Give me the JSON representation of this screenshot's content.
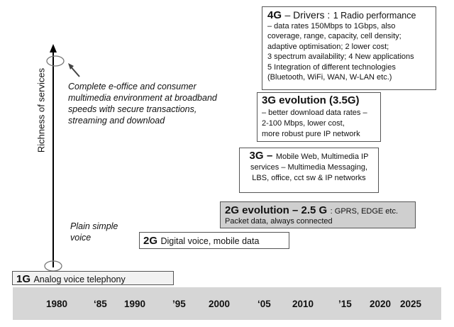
{
  "axis": {
    "label": "Richness of services"
  },
  "notes": {
    "top": [
      "Complete e-office and consumer",
      "multimedia environment at broadband",
      "speeds with secure transactions,",
      "streaming and download"
    ],
    "bottom": [
      "Plain simple",
      "voice"
    ]
  },
  "generations": {
    "g1": {
      "title": "1G",
      "text": "Analog voice telephony"
    },
    "g2": {
      "title": "2G",
      "text": "Digital voice, mobile data"
    },
    "g25": {
      "title": "2G evolution – 2.5 G",
      "text1": ": GPRS, EDGE etc.",
      "text2": "Packet data, always connected"
    },
    "g3": {
      "title": "3G",
      "dash": "–",
      "lines": [
        "Mobile Web, Multimedia IP",
        "services – Multimedia Messaging,",
        "LBS, office, cct sw & IP networks"
      ]
    },
    "g35": {
      "title": "3G evolution (3.5G)",
      "lines": [
        "– better download data rates –",
        "2-100 Mbps, lower cost,",
        "more robust pure IP network"
      ]
    },
    "g4": {
      "title": "4G",
      "head": "– Drivers :",
      "head2": "1 Radio performance",
      "lines": [
        "– data rates 150Mbps to 1Gbps, also",
        "coverage, range, capacity, cell density;",
        "adaptive optimisation; 2 lower cost;",
        "3 spectrum availability; 4 New applications",
        "5 Integration of different technologies",
        "(Bluetooth, WiFi, WAN, W-LAN etc.)"
      ]
    }
  },
  "timeline": [
    "1980",
    "‘85",
    "1990",
    "’95",
    "2000",
    "‘05",
    "2010",
    "’15",
    "2020",
    "2025"
  ]
}
